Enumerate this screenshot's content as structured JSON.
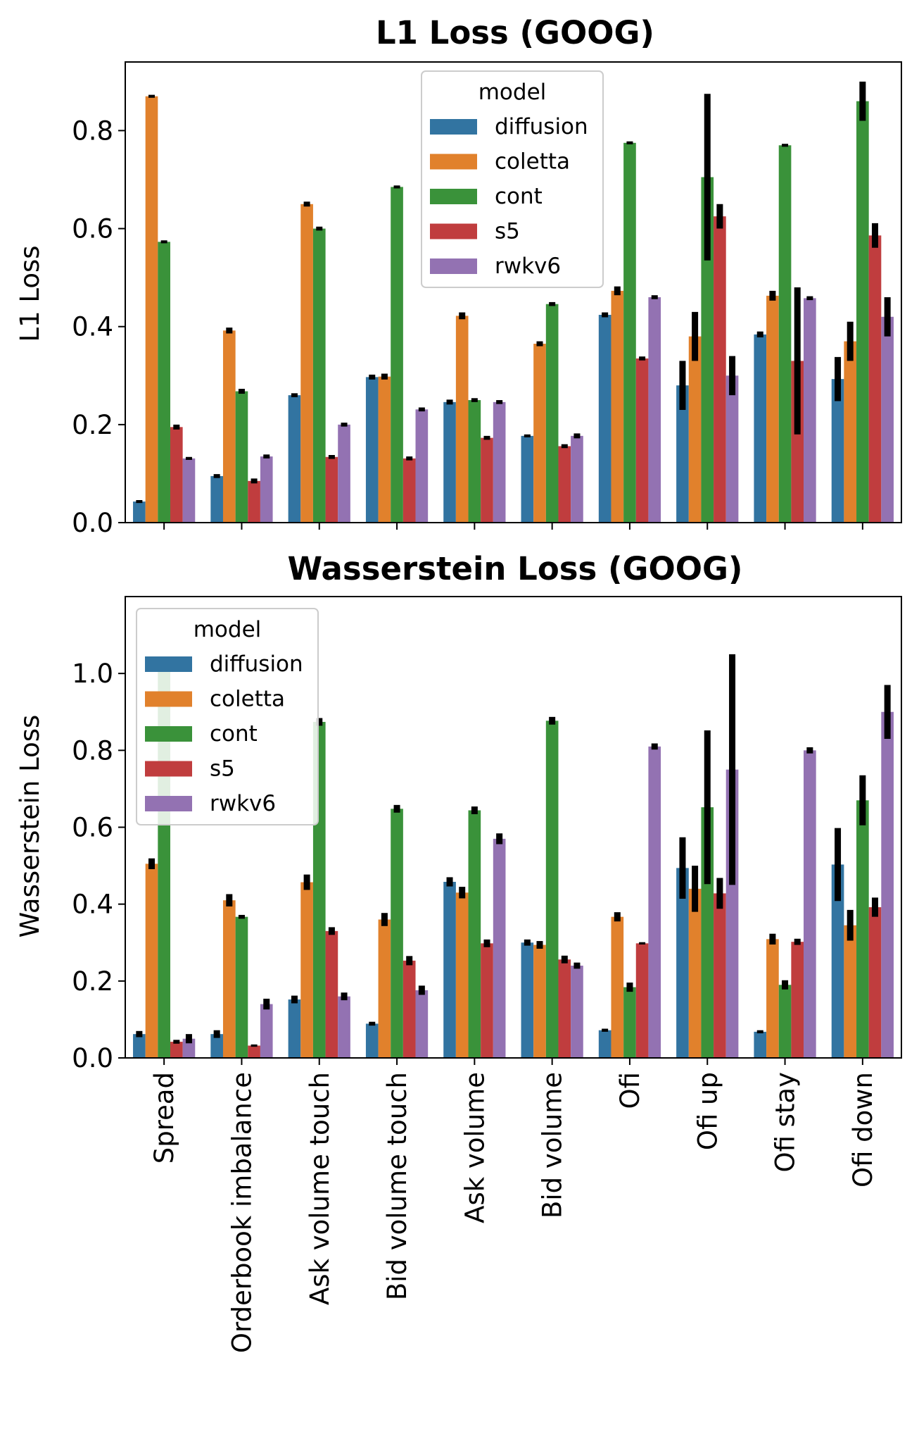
{
  "colors": {
    "diffusion": "#3274a1",
    "coletta": "#e1812c",
    "cont": "#3a923a",
    "s5": "#c03d3e",
    "rwkv6": "#9372b2"
  },
  "chart_data": [
    {
      "type": "bar",
      "title": "L1 Loss (GOOG)",
      "xlabel": "",
      "ylabel": "L1 Loss",
      "ylim": [
        0,
        0.94
      ],
      "yticks": [
        "0.0",
        "0.2",
        "0.4",
        "0.6",
        "0.8"
      ],
      "legend": {
        "title": "model",
        "position": "upper-center"
      },
      "categories": [
        "Spread",
        "Orderbook imbalance",
        "Ask volume touch",
        "Bid volume touch",
        "Ask volume",
        "Bid volume",
        "Ofi",
        "Ofi up",
        "Ofi stay",
        "Ofi down"
      ],
      "series": [
        {
          "name": "diffusion",
          "values": [
            0.043,
            0.095,
            0.26,
            0.297,
            0.246,
            0.177,
            0.424,
            0.28,
            0.384,
            0.293
          ],
          "errors": [
            0.003,
            0.004,
            0.004,
            0.005,
            0.005,
            0.003,
            0.005,
            0.05,
            0.006,
            0.045
          ]
        },
        {
          "name": "coletta",
          "values": [
            0.87,
            0.392,
            0.65,
            0.298,
            0.422,
            0.365,
            0.473,
            0.38,
            0.463,
            0.37
          ],
          "errors": [
            0.003,
            0.006,
            0.005,
            0.006,
            0.007,
            0.005,
            0.009,
            0.05,
            0.01,
            0.04
          ]
        },
        {
          "name": "cont",
          "values": [
            0.573,
            0.268,
            0.6,
            0.685,
            0.25,
            0.446,
            0.775,
            0.705,
            0.77,
            0.86
          ],
          "errors": [
            0.003,
            0.005,
            0.004,
            0.003,
            0.004,
            0.004,
            0.003,
            0.17,
            0.003,
            0.04
          ]
        },
        {
          "name": "s5",
          "values": [
            0.195,
            0.085,
            0.134,
            0.131,
            0.173,
            0.156,
            0.335,
            0.625,
            0.33,
            0.586
          ],
          "errors": [
            0.005,
            0.005,
            0.004,
            0.004,
            0.004,
            0.004,
            0.004,
            0.025,
            0.15,
            0.025
          ]
        },
        {
          "name": "rwkv6",
          "values": [
            0.131,
            0.135,
            0.2,
            0.231,
            0.246,
            0.177,
            0.46,
            0.3,
            0.458,
            0.42
          ],
          "errors": [
            0.003,
            0.004,
            0.004,
            0.004,
            0.004,
            0.005,
            0.004,
            0.04,
            0.004,
            0.04
          ]
        }
      ]
    },
    {
      "type": "bar",
      "title": "Wasserstein Loss (GOOG)",
      "xlabel": "",
      "ylabel": "Wasserstein Loss",
      "ylim": [
        0,
        1.2
      ],
      "yticks": [
        "0.0",
        "0.2",
        "0.4",
        "0.6",
        "0.8",
        "1.0"
      ],
      "legend": {
        "title": "model",
        "position": "upper-left"
      },
      "categories": [
        "Spread",
        "Orderbook imbalance",
        "Ask volume touch",
        "Bid volume touch",
        "Ask volume",
        "Bid volume",
        "Ofi",
        "Ofi up",
        "Ofi stay",
        "Ofi down"
      ],
      "series": [
        {
          "name": "diffusion",
          "values": [
            0.062,
            0.062,
            0.152,
            0.089,
            0.458,
            0.3,
            0.072,
            0.494,
            0.068,
            0.503
          ],
          "errors": [
            0.008,
            0.01,
            0.01,
            0.005,
            0.012,
            0.008,
            0.004,
            0.08,
            0.004,
            0.095
          ]
        },
        {
          "name": "coletta",
          "values": [
            0.505,
            0.41,
            0.457,
            0.36,
            0.43,
            0.294,
            0.367,
            0.44,
            0.309,
            0.345
          ],
          "errors": [
            0.014,
            0.016,
            0.02,
            0.017,
            0.015,
            0.01,
            0.012,
            0.06,
            0.014,
            0.04
          ]
        },
        {
          "name": "cont",
          "values": [
            1.02,
            0.367,
            0.874,
            0.648,
            0.644,
            0.877,
            0.184,
            0.652,
            0.19,
            0.67
          ],
          "errors": [
            0.005,
            0.005,
            0.01,
            0.01,
            0.01,
            0.01,
            0.012,
            0.2,
            0.012,
            0.065
          ]
        },
        {
          "name": "s5",
          "values": [
            0.042,
            0.032,
            0.33,
            0.253,
            0.298,
            0.256,
            0.298,
            0.428,
            0.302,
            0.392
          ],
          "errors": [
            0.005,
            0.003,
            0.01,
            0.012,
            0.01,
            0.01,
            0.003,
            0.04,
            0.008,
            0.025
          ]
        },
        {
          "name": "rwkv6",
          "values": [
            0.05,
            0.14,
            0.16,
            0.176,
            0.57,
            0.24,
            0.81,
            0.75,
            0.8,
            0.9
          ],
          "errors": [
            0.012,
            0.014,
            0.01,
            0.012,
            0.014,
            0.008,
            0.008,
            0.3,
            0.008,
            0.07
          ]
        }
      ]
    }
  ]
}
